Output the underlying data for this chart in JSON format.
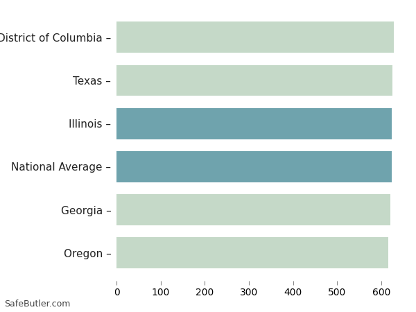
{
  "categories": [
    "District of Columbia",
    "Texas",
    "Illinois",
    "National Average",
    "Georgia",
    "Oregon"
  ],
  "values": [
    628,
    625,
    624,
    623,
    620,
    615
  ],
  "bar_colors": [
    "#c5d9c8",
    "#c5d9c8",
    "#6fa3ad",
    "#6fa3ad",
    "#c5d9c8",
    "#c5d9c8"
  ],
  "xlim": [
    0,
    650
  ],
  "xticks": [
    0,
    100,
    200,
    300,
    400,
    500,
    600
  ],
  "background_color": "#ffffff",
  "grid_color": "#e8e8e8",
  "bar_area_bg": "#ffffff",
  "watermark": "SafeButler.com",
  "tick_fontsize": 10,
  "label_fontsize": 11,
  "bar_height": 0.72
}
